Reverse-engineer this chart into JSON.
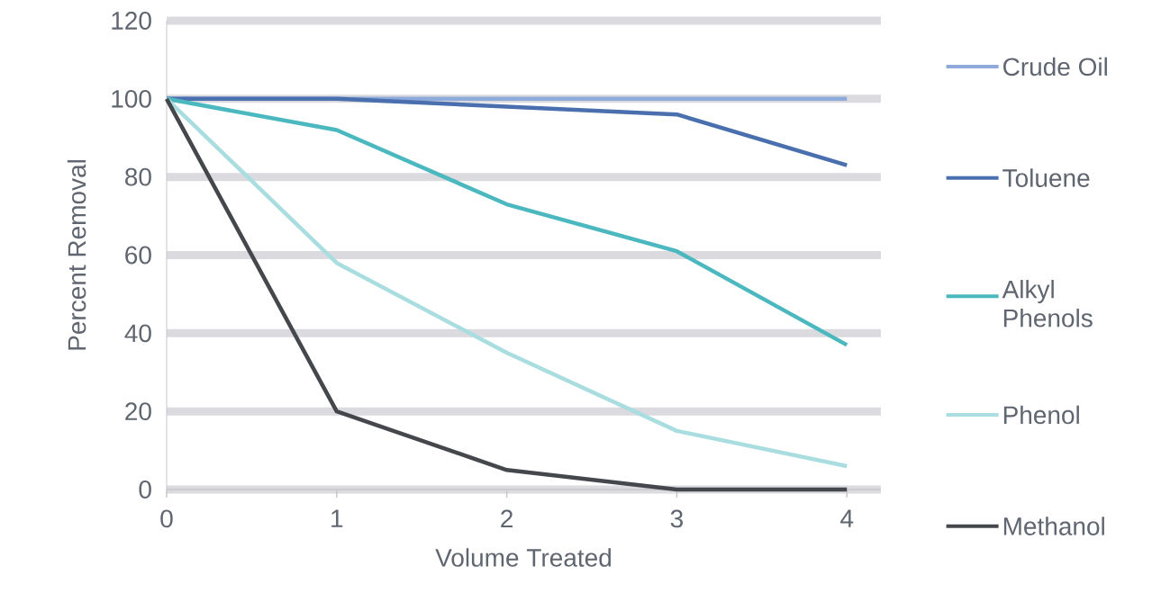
{
  "chart_data": {
    "type": "line",
    "xlabel": "Volume Treated",
    "ylabel": "Percent Removal",
    "x": [
      0,
      1,
      2,
      3,
      4
    ],
    "series": [
      {
        "name": "Crude Oil",
        "color": "#8eaadb",
        "values": [
          100,
          100,
          100,
          100,
          100
        ]
      },
      {
        "name": "Toluene",
        "color": "#4a6fae",
        "values": [
          100,
          100,
          98,
          96,
          83
        ]
      },
      {
        "name": "Alkyl Phenols",
        "color": "#4bb8bf",
        "values": [
          100,
          92,
          73,
          61,
          37
        ]
      },
      {
        "name": "Phenol",
        "color": "#a9dde0",
        "values": [
          100,
          58,
          35,
          15,
          6
        ]
      },
      {
        "name": "Methanol",
        "color": "#44474c",
        "values": [
          100,
          20,
          5,
          0,
          0
        ]
      }
    ],
    "xlim": [
      0,
      4.2
    ],
    "xticks": [
      0,
      1,
      2,
      3,
      4
    ],
    "ylim": [
      0,
      120
    ],
    "yticks": [
      0,
      20,
      40,
      60,
      80,
      100,
      120
    ],
    "grid": "y",
    "legend": "right",
    "marker": "none",
    "line_style": "solid"
  }
}
